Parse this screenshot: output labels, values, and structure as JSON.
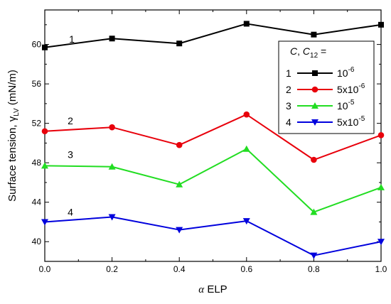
{
  "chart_data": {
    "type": "line",
    "x": [
      0.0,
      0.2,
      0.4,
      0.6,
      0.8,
      1.0
    ],
    "xlim": [
      0.0,
      1.0
    ],
    "ylim": [
      38,
      63.5
    ],
    "xticks": [
      "0.0",
      "0.2",
      "0.4",
      "0.6",
      "0.8",
      "1.0"
    ],
    "yticks": [
      "40",
      "44",
      "48",
      "52",
      "56",
      "60"
    ],
    "xlabel": {
      "prefix": "α",
      "main": " ELP"
    },
    "ylabel": {
      "main": "Surface tension, γ",
      "sub": "LV",
      "unit": " (mN/m)"
    },
    "grid": false,
    "legend_position": "top-right",
    "legend": {
      "header": {
        "c": "C",
        "sep": ", ",
        "c12": "C",
        "c12_sub": "12",
        "eq": " ="
      },
      "entries": [
        {
          "num": "1",
          "base": "10",
          "exp": "-6"
        },
        {
          "num": "2",
          "base": "5x10",
          "exp": "-6"
        },
        {
          "num": "3",
          "base": "10",
          "exp": "-5"
        },
        {
          "num": "4",
          "base": "5x10",
          "exp": "-5"
        }
      ]
    },
    "series": [
      {
        "label": "1",
        "color": "#000000",
        "marker": "square",
        "values": [
          59.7,
          60.6,
          60.1,
          62.1,
          61.0,
          62.0
        ]
      },
      {
        "label": "2",
        "color": "#e8000b",
        "marker": "circle",
        "values": [
          51.2,
          51.6,
          49.8,
          52.9,
          48.3,
          50.8
        ]
      },
      {
        "label": "3",
        "color": "#22dd22",
        "marker": "triangle-up",
        "values": [
          47.7,
          47.6,
          45.8,
          49.4,
          43.0,
          45.5
        ]
      },
      {
        "label": "4",
        "color": "#0000dd",
        "marker": "triangle-down",
        "values": [
          42.0,
          42.5,
          41.2,
          42.1,
          38.6,
          40.0
        ]
      }
    ]
  }
}
